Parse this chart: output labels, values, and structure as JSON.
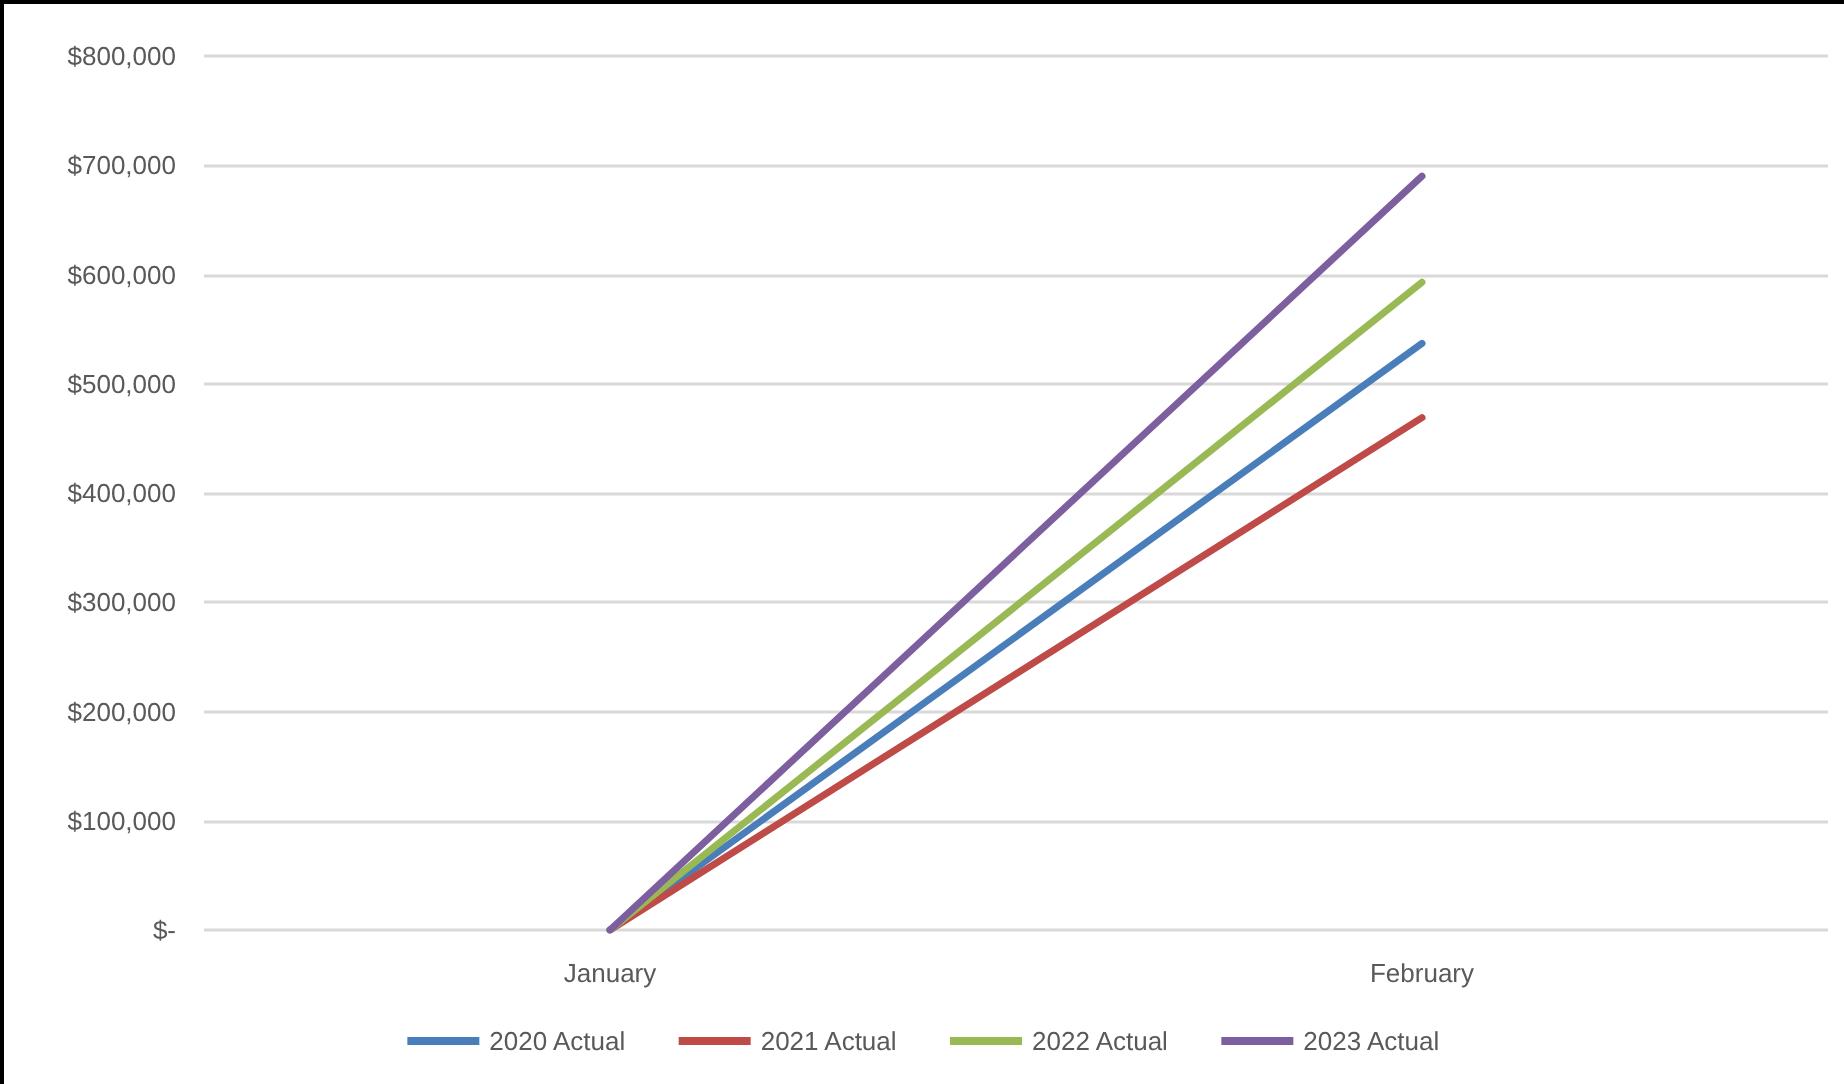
{
  "chart_data": {
    "type": "line",
    "categories": [
      "January",
      "February"
    ],
    "series": [
      {
        "name": "2020 Actual",
        "color": "#4a7ebb",
        "values": [
          0,
          537000
        ]
      },
      {
        "name": "2021 Actual",
        "color": "#be4b48",
        "values": [
          0,
          469000
        ]
      },
      {
        "name": "2022 Actual",
        "color": "#98b954",
        "values": [
          0,
          593000
        ]
      },
      {
        "name": "2023 Actual",
        "color": "#7d5fa0",
        "values": [
          0,
          690000
        ]
      }
    ],
    "ylim": [
      0,
      800000
    ],
    "yticks": [
      {
        "value": 0,
        "label": "$-"
      },
      {
        "value": 100000,
        "label": "$100,000"
      },
      {
        "value": 200000,
        "label": "$200,000"
      },
      {
        "value": 300000,
        "label": "$300,000"
      },
      {
        "value": 400000,
        "label": "$400,000"
      },
      {
        "value": 500000,
        "label": "$500,000"
      },
      {
        "value": 600000,
        "label": "$600,000"
      },
      {
        "value": 700000,
        "label": "$700,000"
      },
      {
        "value": 800000,
        "label": "$800,000"
      }
    ],
    "grid": "y",
    "legend": "bottom",
    "marker": "none",
    "line_style": "solid"
  }
}
